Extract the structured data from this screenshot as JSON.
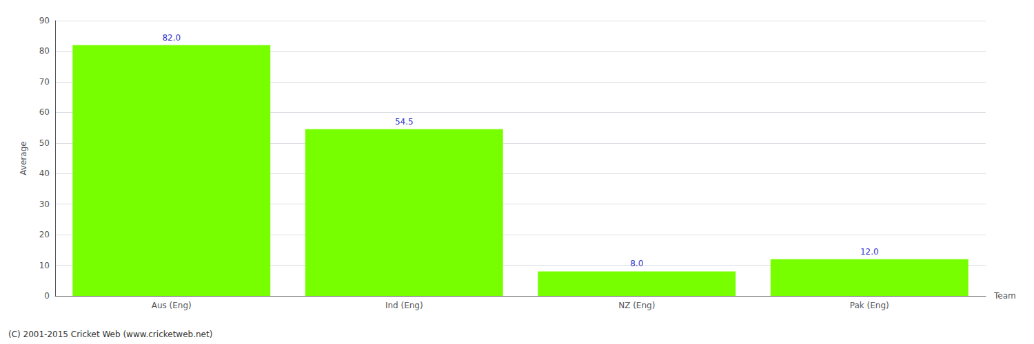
{
  "chart_data": {
    "type": "bar",
    "categories": [
      "Aus (Eng)",
      "Ind (Eng)",
      "NZ (Eng)",
      "Pak (Eng)"
    ],
    "values": [
      82.0,
      54.5,
      8.0,
      12.0
    ],
    "value_labels": [
      "82.0",
      "54.5",
      "8.0",
      "12.0"
    ],
    "data_labels": true,
    "color": "#77ff00",
    "xlabel": "Team",
    "ylabel": "Average",
    "ylim": [
      0,
      90
    ],
    "yticks": [
      0,
      10,
      20,
      30,
      40,
      50,
      60,
      70,
      80,
      90
    ],
    "grid": true,
    "annotations": [
      "(C) 2001-2015 Cricket Web (www.cricketweb.net)"
    ]
  }
}
